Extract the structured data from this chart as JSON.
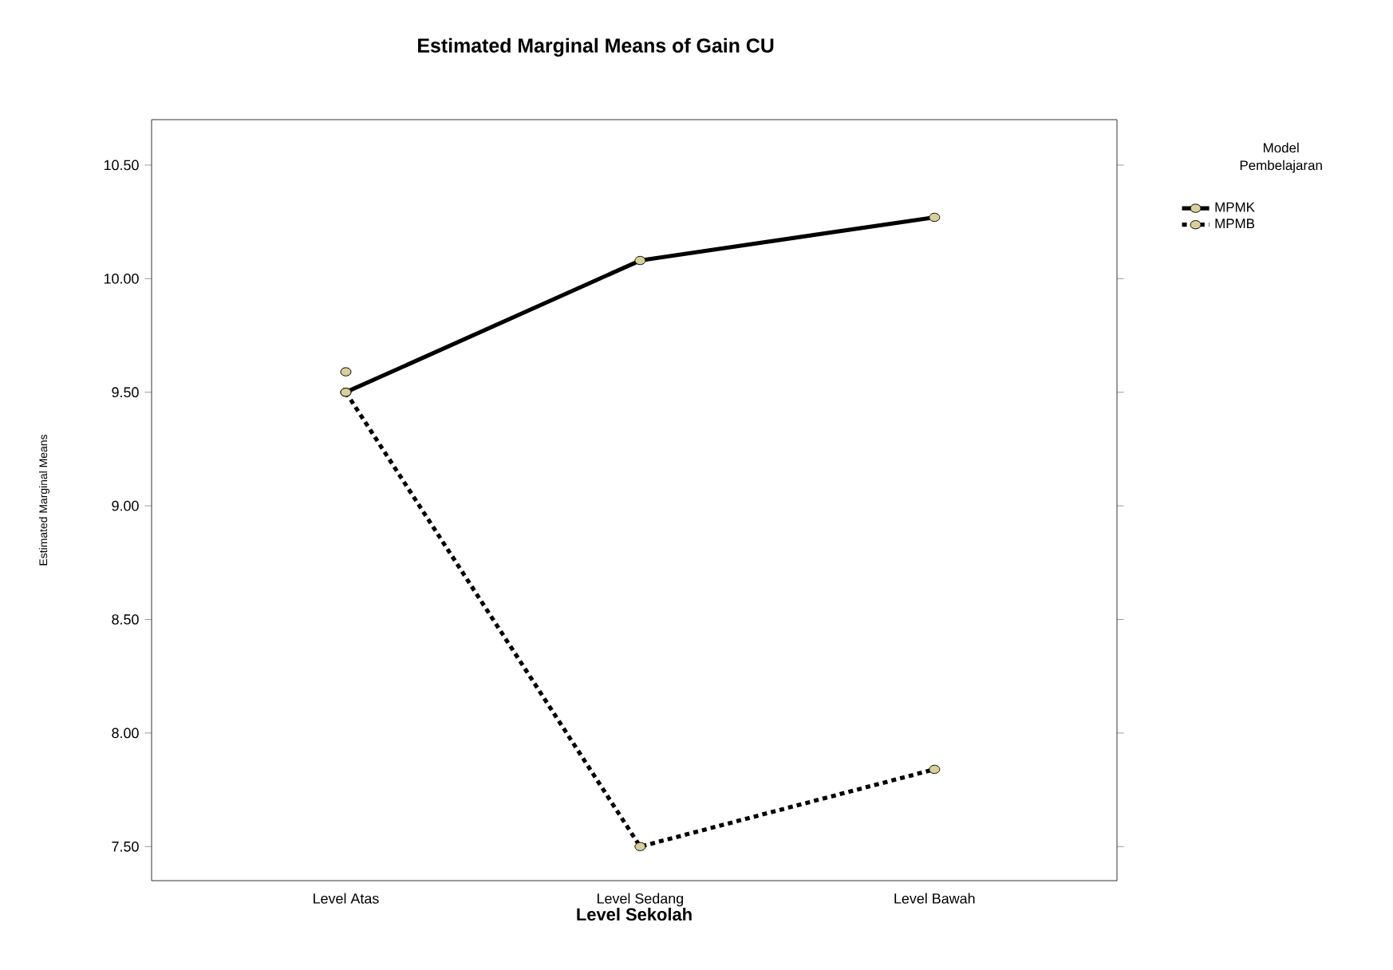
{
  "chart_data": {
    "type": "line",
    "title": "Estimated Marginal Means of Gain CU",
    "xlabel": "Level Sekolah",
    "ylabel": "Estimated Marginal Means",
    "legend_title": "Model Pembelajaran",
    "categories": [
      "Level Atas",
      "Level Sedang",
      "Level Bawah"
    ],
    "series": [
      {
        "name": "MPMK",
        "color": "#000000",
        "line_style": "solid",
        "values": [
          9.5,
          10.08,
          10.27
        ]
      },
      {
        "name": "MPMB",
        "color": "#000000",
        "line_style": "dotted",
        "values": [
          9.5,
          7.5,
          7.84
        ]
      },
      {
        "type": "scatter",
        "color": "#000000",
        "x": [
          "Level Atas"
        ],
        "values": [
          9.59
        ]
      }
    ],
    "marker": "circle",
    "ylim": [
      7.35,
      10.7
    ],
    "yticks": [
      {
        "value": 7.5,
        "label": "7.50"
      },
      {
        "value": 8,
        "label": "8.00"
      },
      {
        "value": 8.5,
        "label": "8.50"
      },
      {
        "value": 9,
        "label": "9.00"
      },
      {
        "value": 9.5,
        "label": "9.50"
      },
      {
        "value": 10,
        "label": "10.00"
      },
      {
        "value": 10.5,
        "label": "10.50"
      }
    ],
    "grid": false,
    "legend": "top right"
  }
}
